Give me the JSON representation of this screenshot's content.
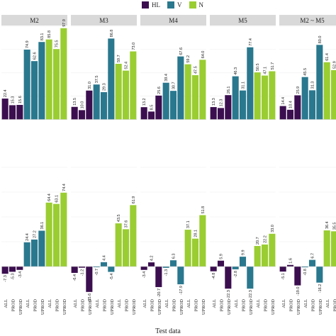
{
  "legend": [
    {
      "label": "HL",
      "color": "#3b0f4f"
    },
    {
      "label": "V",
      "color": "#2a788e"
    },
    {
      "label": "N",
      "color": "#9acd32"
    }
  ],
  "xlabel": "Test data",
  "chart_data": {
    "type": "bar",
    "categories": [
      "ALL",
      "PROD",
      "UPROD",
      "ALL",
      "PROD",
      "UPROD",
      "ALL",
      "PROD",
      "UPROD"
    ],
    "category_groups": [
      "HL",
      "HL",
      "HL",
      "V",
      "V",
      "V",
      "N",
      "N",
      "N"
    ],
    "panels": [
      "M2",
      "M3",
      "M4",
      "M5",
      "M2 ~ M5"
    ],
    "rows": [
      {
        "values": [
          [
            22.4,
            15.3,
            15.6,
            74.9,
            62.6,
            83.1,
            85.8,
            75.5,
            97.9
          ],
          [
            13.5,
            10.0,
            31.0,
            37.5,
            29.3,
            86.8,
            59.7,
            52.4,
            73.0
          ],
          [
            13.2,
            8.5,
            25.6,
            39.4,
            30.7,
            67.6,
            59.2,
            47.5,
            64.0
          ],
          [
            13.3,
            12.3,
            26.1,
            46.3,
            31.1,
            77.4,
            50.5,
            47.1,
            51.7
          ],
          [
            14.4,
            10.4,
            25.9,
            45.5,
            31.3,
            80.0,
            61.4,
            52.9,
            null
          ]
        ]
      },
      {
        "values": [
          [
            -7.3,
            -5.3,
            -3.4,
            24.4,
            27.2,
            36.1,
            64.4,
            63.1,
            74.4
          ],
          [
            -6.4,
            -1.2,
            -25.6,
            -0.7,
            4.4,
            -5.4,
            43.5,
            37.6,
            61.9
          ],
          [
            -3.4,
            4.2,
            -20.7,
            -1.3,
            6.3,
            -17.9,
            37.1,
            28.1,
            51.8
          ],
          [
            -4.8,
            5.9,
            -22.3,
            -2.8,
            9.9,
            -22.3,
            20.7,
            22.2,
            33.0
          ],
          [
            -5.1,
            1.6,
            -19.0,
            -0.8,
            6.7,
            -16.2,
            36.4,
            35.5,
            null
          ]
        ]
      }
    ],
    "ylim": [
      -30,
      100
    ],
    "grid": true,
    "legend_position": "top"
  }
}
